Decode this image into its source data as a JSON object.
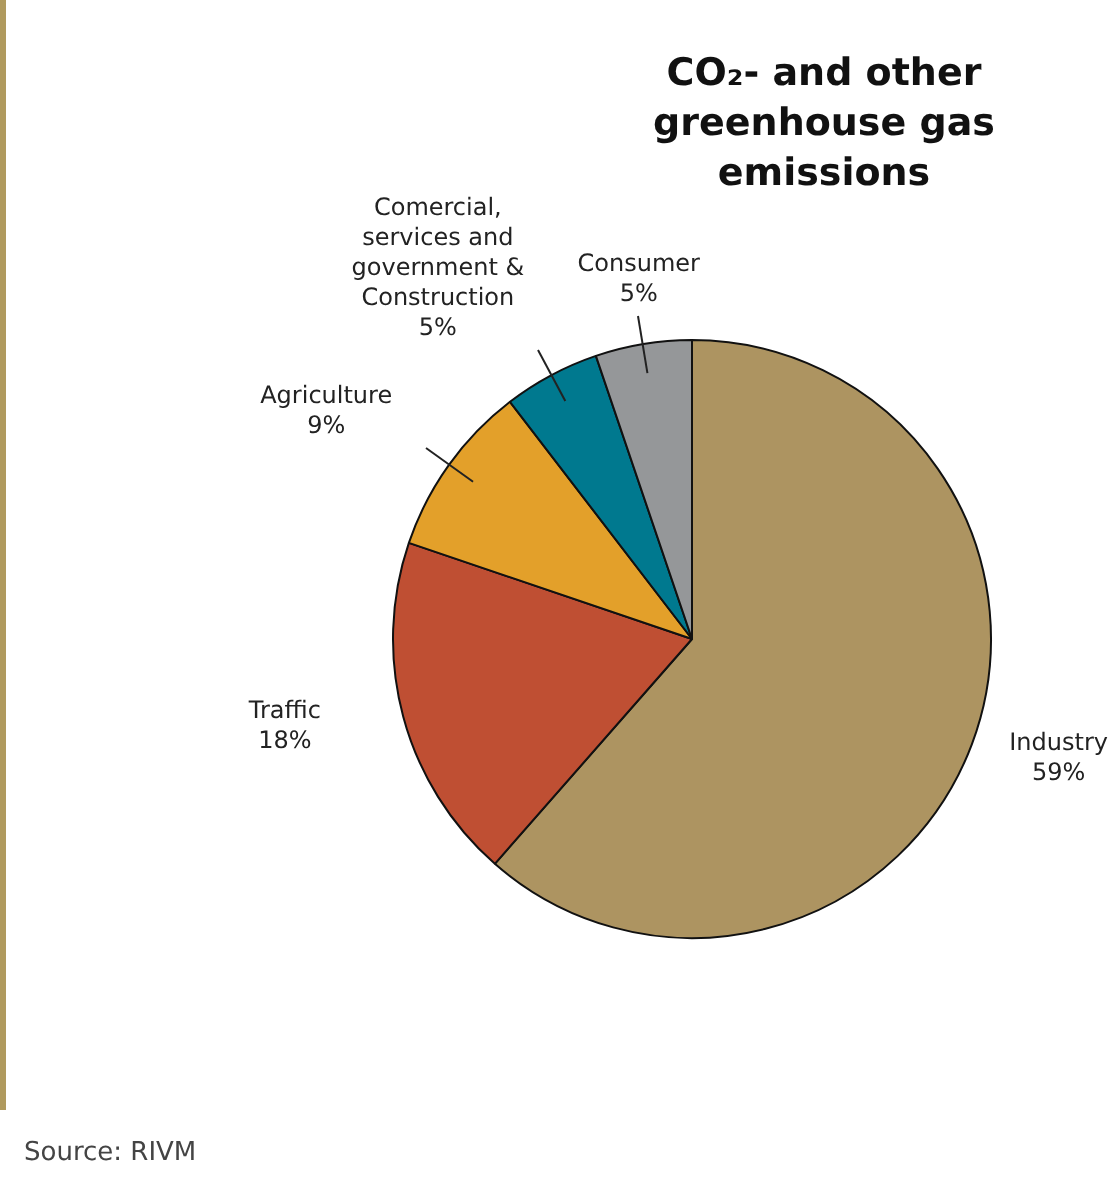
{
  "chart_data": {
    "type": "pie",
    "title": "CO₂- and other greenhouse gas emissions",
    "categories": [
      "Industry",
      "Traffic",
      "Agriculture",
      "Comercial, services and government & Construction",
      "Consumer"
    ],
    "values": [
      59,
      18,
      9,
      5,
      5
    ],
    "value_labels": [
      "59%",
      "18%",
      "9%",
      "5%",
      "5%"
    ],
    "colors": [
      "#ad9461",
      "#bf4f33",
      "#e3a02a",
      "#00798f",
      "#959799"
    ],
    "legend": false,
    "annotations": [
      "Source: RIVM"
    ]
  }
}
